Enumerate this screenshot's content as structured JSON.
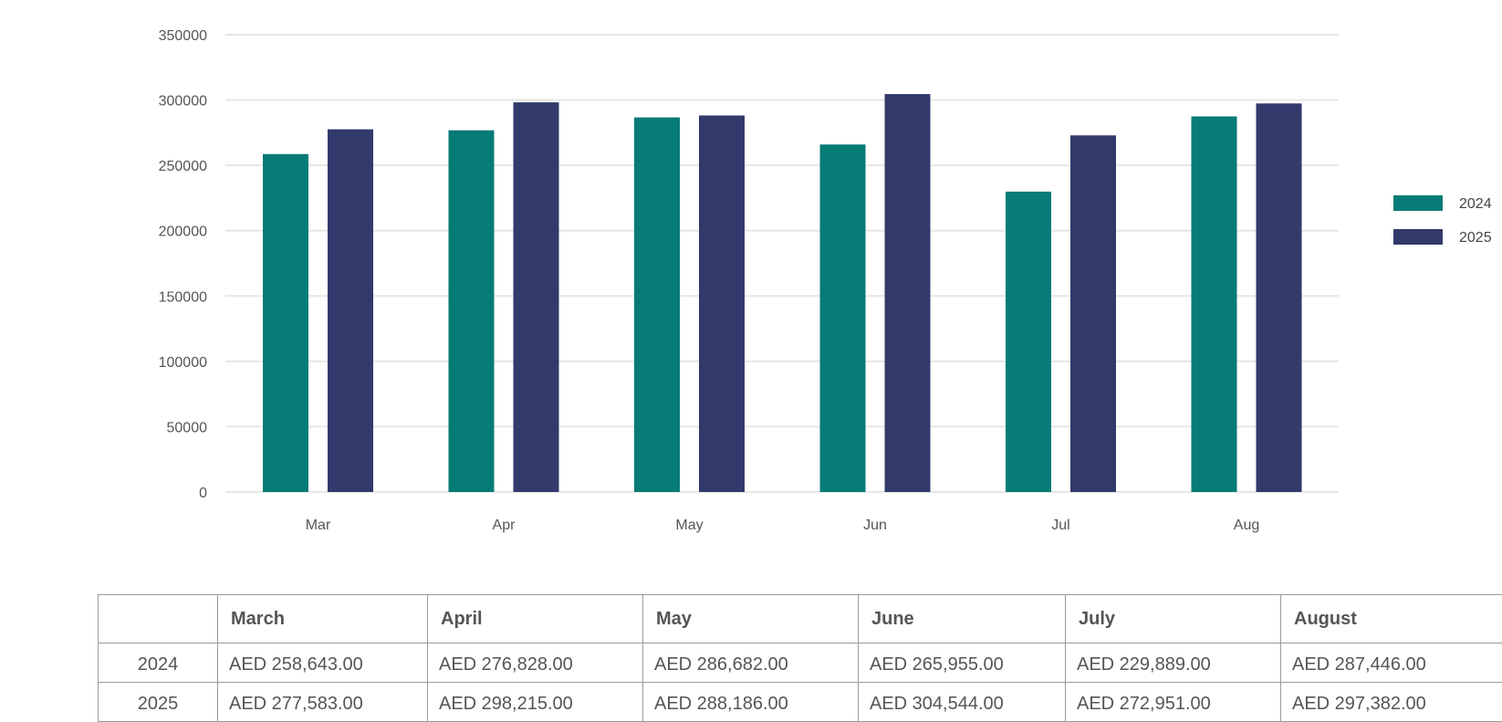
{
  "colors": {
    "series_2024": "#077b76",
    "series_2025": "#313a6b",
    "grid": "#e6e6e6"
  },
  "chart_data": {
    "type": "bar",
    "categories": [
      "Mar",
      "Apr",
      "May",
      "Jun",
      "Jul",
      "Aug"
    ],
    "series": [
      {
        "name": "2024",
        "values": [
          258643,
          276828,
          286682,
          265955,
          229889,
          287446
        ]
      },
      {
        "name": "2025",
        "values": [
          277583,
          298215,
          288186,
          304544,
          272951,
          297382
        ]
      }
    ],
    "yticks": [
      "0",
      "50000",
      "100000",
      "150000",
      "200000",
      "250000",
      "300000",
      "350000"
    ],
    "ylim": [
      0,
      350000
    ],
    "grid": true,
    "legend_position": "right"
  },
  "table": {
    "headers": [
      "",
      "March",
      "April",
      "May",
      "June",
      "July",
      "August"
    ],
    "rows": [
      {
        "label": "2024",
        "cells": [
          "AED 258,643.00",
          "AED 276,828.00",
          "AED 286,682.00",
          "AED 265,955.00",
          "AED 229,889.00",
          "AED 287,446.00"
        ]
      },
      {
        "label": "2025",
        "cells": [
          "AED 277,583.00",
          "AED 298,215.00",
          "AED 288,186.00",
          "AED 304,544.00",
          "AED 272,951.00",
          "AED 297,382.00"
        ]
      }
    ]
  }
}
